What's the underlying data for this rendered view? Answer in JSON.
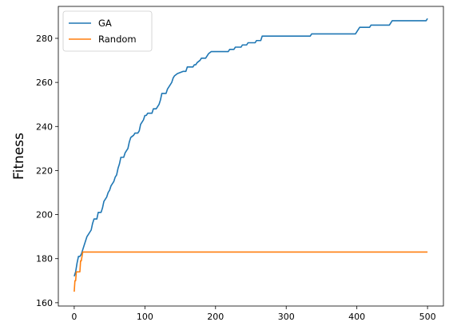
{
  "chart_data": {
    "type": "line",
    "title": "",
    "xlabel": "",
    "ylabel": "Fitness",
    "xlim": [
      -22.5,
      522.5
    ],
    "ylim": [
      158.5,
      294.5
    ],
    "xticks": [
      0,
      100,
      200,
      300,
      400,
      500
    ],
    "yticks": [
      160,
      180,
      200,
      220,
      240,
      260,
      280
    ],
    "grid": false,
    "legend_position": "top-left",
    "series": [
      {
        "name": "GA",
        "color": "#1f77b4",
        "points": [
          [
            0,
            172
          ],
          [
            2,
            174
          ],
          [
            4,
            178
          ],
          [
            6,
            181
          ],
          [
            8,
            181
          ],
          [
            10,
            182
          ],
          [
            12,
            184
          ],
          [
            14,
            186
          ],
          [
            16,
            188
          ],
          [
            18,
            190
          ],
          [
            20,
            191
          ],
          [
            22,
            192
          ],
          [
            24,
            193
          ],
          [
            26,
            196
          ],
          [
            28,
            198
          ],
          [
            32,
            198
          ],
          [
            34,
            201
          ],
          [
            38,
            201
          ],
          [
            40,
            203
          ],
          [
            42,
            206
          ],
          [
            44,
            207
          ],
          [
            46,
            208
          ],
          [
            48,
            210
          ],
          [
            50,
            211
          ],
          [
            52,
            213
          ],
          [
            54,
            214
          ],
          [
            56,
            215
          ],
          [
            58,
            217
          ],
          [
            60,
            218
          ],
          [
            62,
            221
          ],
          [
            64,
            223
          ],
          [
            66,
            226
          ],
          [
            70,
            226
          ],
          [
            72,
            228
          ],
          [
            74,
            229
          ],
          [
            76,
            230
          ],
          [
            78,
            233
          ],
          [
            80,
            235
          ],
          [
            84,
            236
          ],
          [
            86,
            237
          ],
          [
            90,
            237
          ],
          [
            92,
            238
          ],
          [
            94,
            241
          ],
          [
            96,
            242
          ],
          [
            98,
            243
          ],
          [
            100,
            245
          ],
          [
            102,
            245
          ],
          [
            104,
            246
          ],
          [
            110,
            246
          ],
          [
            112,
            248
          ],
          [
            116,
            248
          ],
          [
            118,
            249
          ],
          [
            120,
            250
          ],
          [
            122,
            252
          ],
          [
            124,
            255
          ],
          [
            130,
            255
          ],
          [
            132,
            257
          ],
          [
            134,
            258
          ],
          [
            136,
            259
          ],
          [
            138,
            260
          ],
          [
            140,
            262
          ],
          [
            142,
            263
          ],
          [
            146,
            264
          ],
          [
            154,
            265
          ],
          [
            158,
            265
          ],
          [
            160,
            267
          ],
          [
            168,
            267
          ],
          [
            170,
            268
          ],
          [
            172,
            268
          ],
          [
            174,
            269
          ],
          [
            178,
            270
          ],
          [
            180,
            271
          ],
          [
            186,
            271
          ],
          [
            188,
            272
          ],
          [
            190,
            273
          ],
          [
            194,
            274
          ],
          [
            218,
            274
          ],
          [
            220,
            275
          ],
          [
            226,
            275
          ],
          [
            228,
            276
          ],
          [
            236,
            276
          ],
          [
            238,
            277
          ],
          [
            244,
            277
          ],
          [
            246,
            278
          ],
          [
            256,
            278
          ],
          [
            258,
            279
          ],
          [
            264,
            279
          ],
          [
            266,
            281
          ],
          [
            334,
            281
          ],
          [
            336,
            282
          ],
          [
            398,
            282
          ],
          [
            400,
            283
          ],
          [
            402,
            284
          ],
          [
            404,
            285
          ],
          [
            418,
            285
          ],
          [
            420,
            286
          ],
          [
            446,
            286
          ],
          [
            448,
            287
          ],
          [
            450,
            288
          ],
          [
            498,
            288
          ],
          [
            500,
            289
          ]
        ]
      },
      {
        "name": "Random",
        "color": "#ff7f0e",
        "points": [
          [
            0,
            165
          ],
          [
            1,
            170
          ],
          [
            2,
            170
          ],
          [
            3,
            174
          ],
          [
            8,
            174
          ],
          [
            9,
            179
          ],
          [
            10,
            179
          ],
          [
            11,
            181
          ],
          [
            12,
            183
          ],
          [
            500,
            183
          ]
        ]
      }
    ]
  }
}
